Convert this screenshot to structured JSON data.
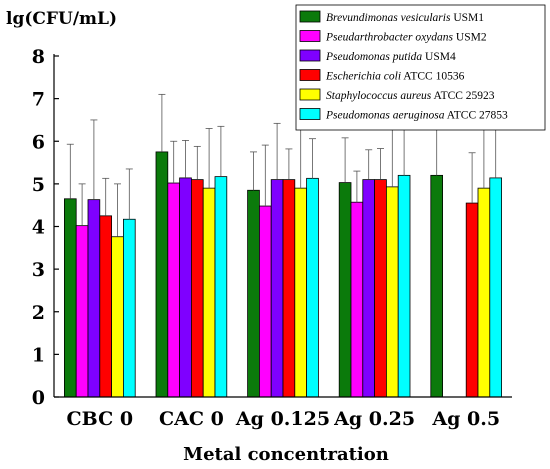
{
  "chart_data": {
    "type": "bar",
    "ylabel": "lg(CFU/mL)",
    "xlabel": "Metal concentration",
    "ylim": [
      0,
      8
    ],
    "yticks": [
      0,
      1,
      2,
      3,
      4,
      5,
      6,
      7,
      8
    ],
    "categories": [
      "CBC 0",
      "CAC 0",
      "Ag 0.125",
      "Ag 0.25",
      "Ag 0.5"
    ],
    "legend_position": "top-right",
    "error_bars": true,
    "series": [
      {
        "name_italic": "Brevundimonas vesicularis",
        "name_rest": " USM1",
        "color": "#0b7a0b",
        "values": [
          4.65,
          5.75,
          4.85,
          5.03,
          5.2
        ],
        "errors": [
          1.28,
          1.35,
          0.9,
          1.05,
          1.12
        ]
      },
      {
        "name_italic": "Pseudarthrobacter oxydans",
        "name_rest": " USM2",
        "color": "#ff00ff",
        "values": [
          4.02,
          5.02,
          4.48,
          4.57,
          null
        ],
        "errors": [
          0.98,
          0.98,
          1.43,
          0.73,
          null
        ]
      },
      {
        "name_italic": "Pseudomonas putida",
        "name_rest": " USM4",
        "color": "#7f00ff",
        "values": [
          4.63,
          5.14,
          5.1,
          5.1,
          null
        ],
        "errors": [
          1.87,
          0.88,
          1.32,
          0.7,
          null
        ]
      },
      {
        "name_italic": "Escherichia coli",
        "name_rest": " ATCC 10536",
        "color": "#ff0000",
        "values": [
          4.25,
          5.1,
          5.1,
          5.1,
          4.55
        ],
        "errors": [
          0.88,
          0.78,
          0.72,
          0.73,
          1.18
        ]
      },
      {
        "name_italic": "Staphylococcus aureus",
        "name_rest": " ATCC 25923",
        "color": "#ffff00",
        "values": [
          3.76,
          4.9,
          4.9,
          4.93,
          4.9
        ],
        "errors": [
          1.24,
          1.4,
          1.4,
          1.42,
          1.38
        ]
      },
      {
        "name_italic": "Pseudomonas aeruginosa",
        "name_rest": " ATCC 27853",
        "color": "#00ffff",
        "values": [
          4.17,
          5.17,
          5.13,
          5.2,
          5.14
        ],
        "errors": [
          1.18,
          1.18,
          0.93,
          1.23,
          1.16
        ]
      }
    ]
  }
}
